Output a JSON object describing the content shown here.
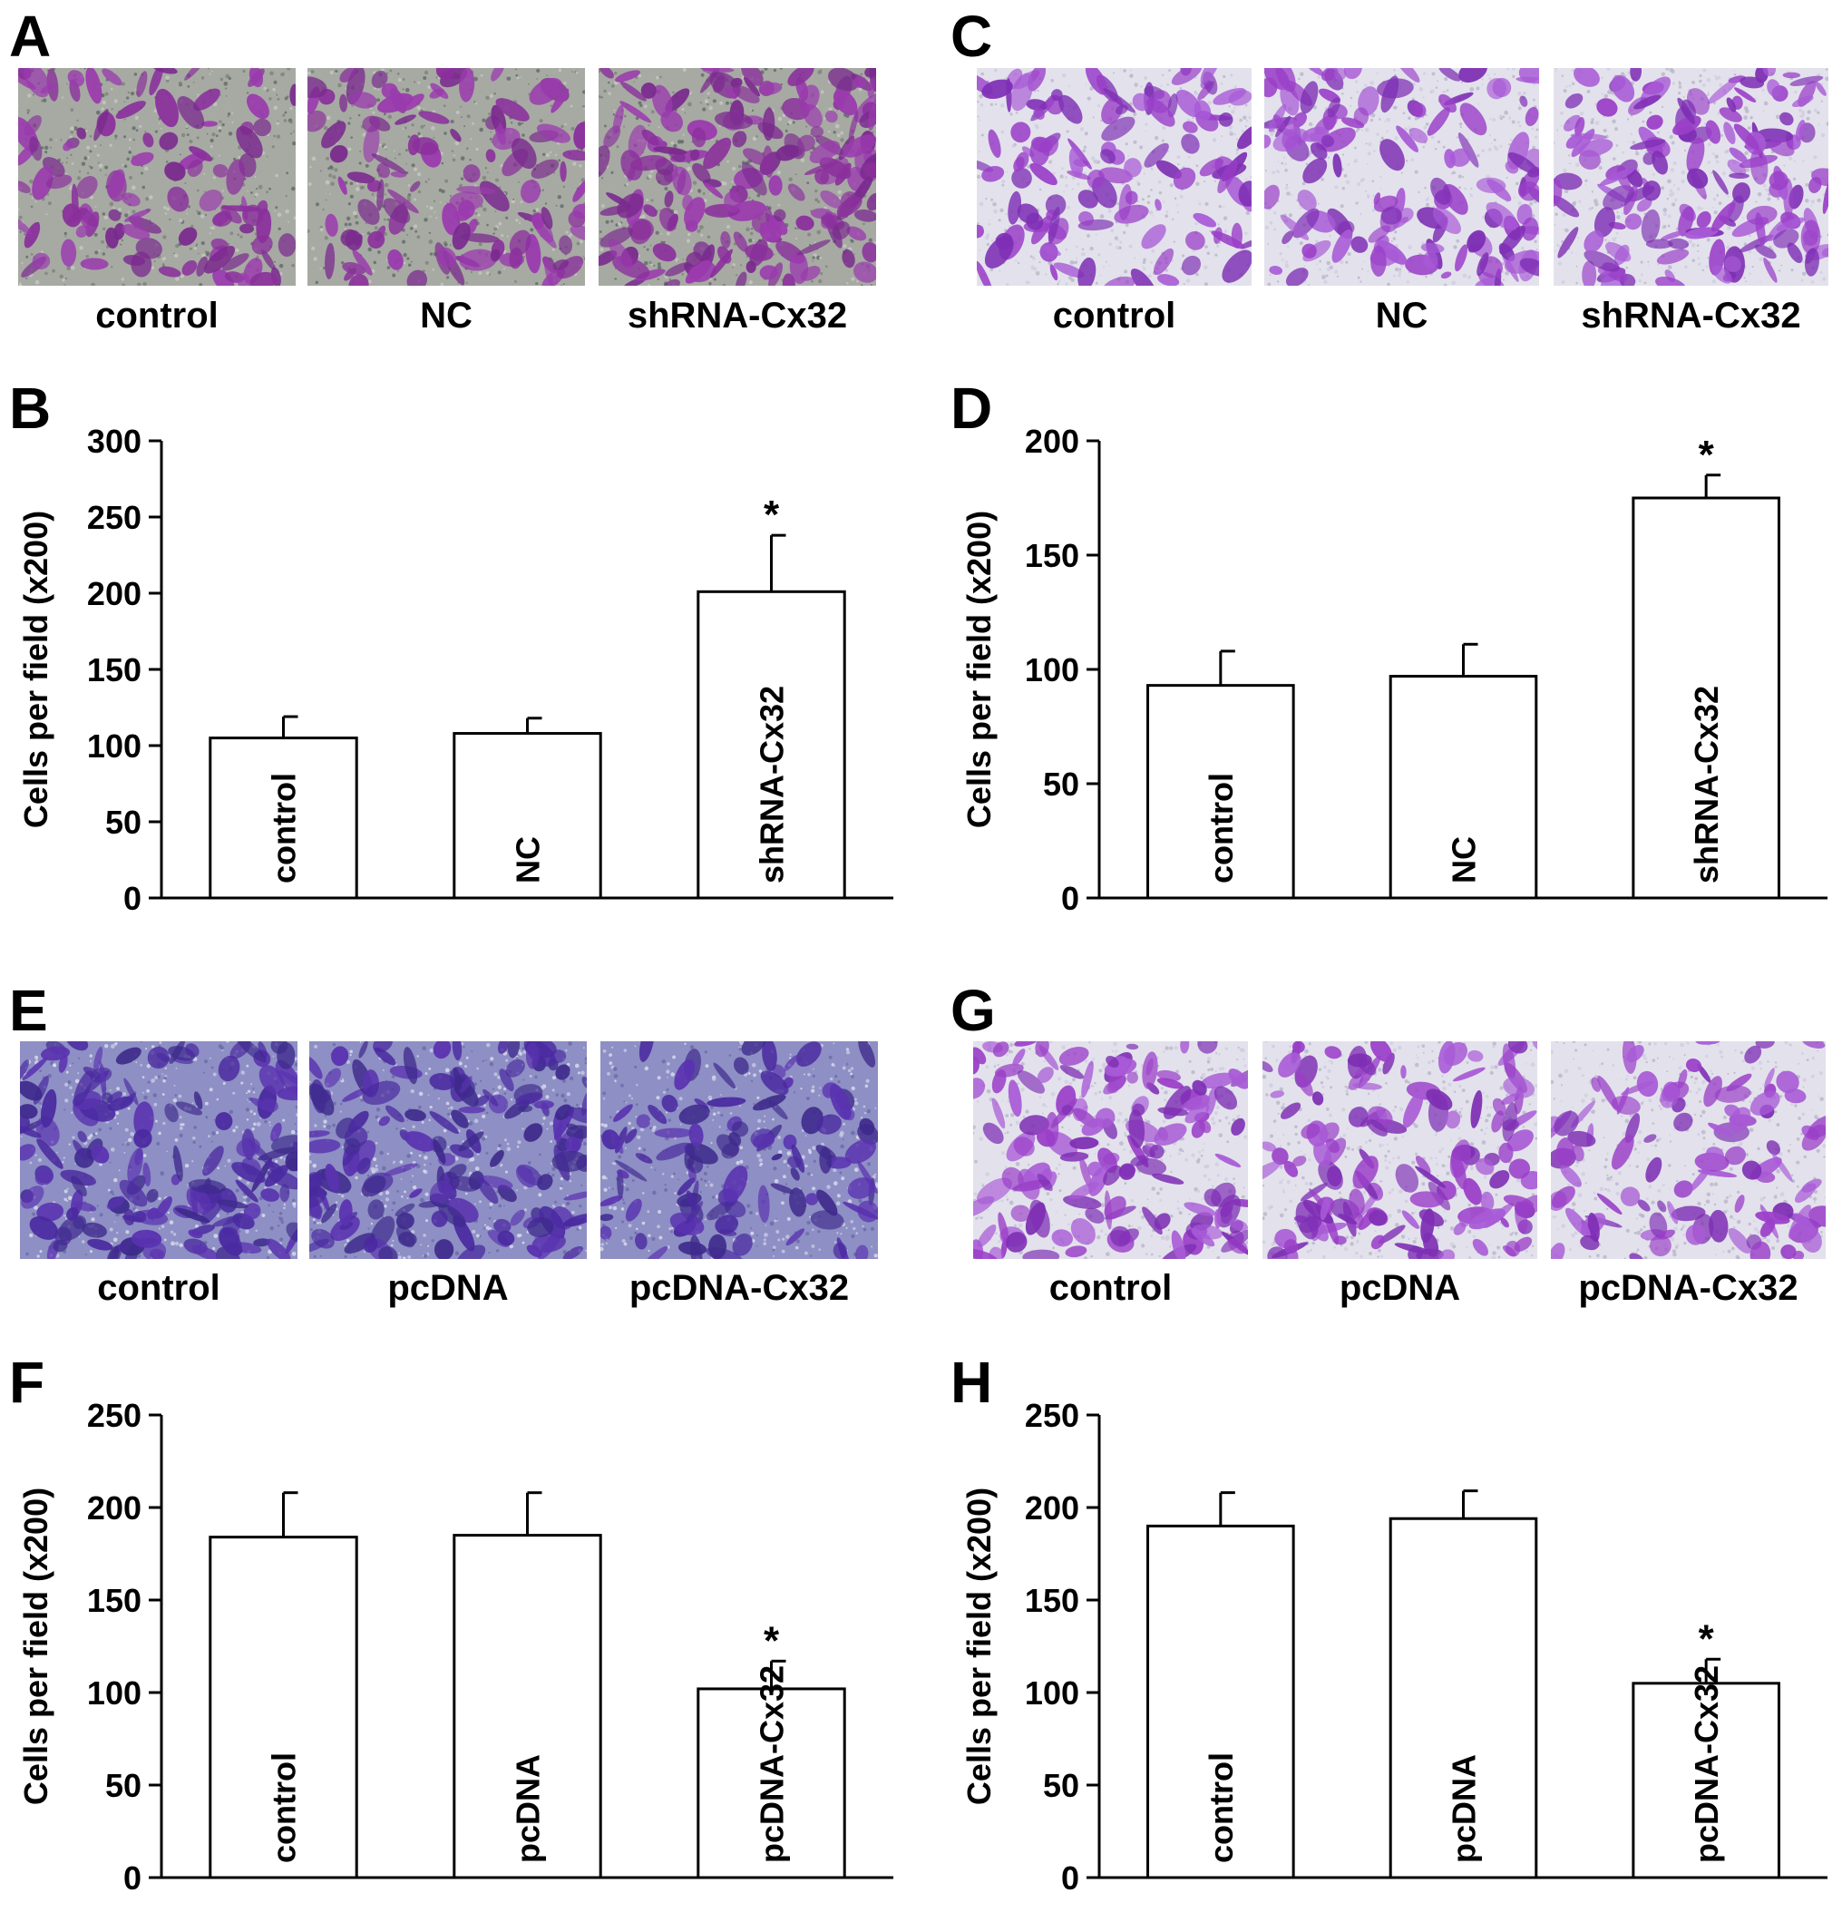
{
  "panels": [
    {
      "letter": "A",
      "labels": [
        "control",
        "NC",
        "shRNA-Cx32"
      ],
      "style": "grey",
      "density": [
        0.45,
        0.5,
        0.95
      ]
    },
    {
      "letter": "C",
      "labels": [
        "control",
        "NC",
        "shRNA-Cx32"
      ],
      "style": "light",
      "density": [
        0.55,
        0.65,
        0.75
      ]
    },
    {
      "letter": "E",
      "labels": [
        "control",
        "pcDNA",
        "pcDNA-Cx32"
      ],
      "style": "blue",
      "density": [
        0.8,
        0.82,
        0.45
      ]
    },
    {
      "letter": "G",
      "labels": [
        "control",
        "pcDNA",
        "pcDNA-Cx32"
      ],
      "style": "light",
      "density": [
        0.75,
        0.7,
        0.45
      ]
    }
  ],
  "chart_data": [
    {
      "letter": "B",
      "type": "bar",
      "categories": [
        "control",
        "NC",
        "shRNA-Cx32"
      ],
      "values": [
        105,
        108,
        201
      ],
      "errors": [
        14,
        10,
        37
      ],
      "significance": [
        "",
        "",
        "*"
      ],
      "ylabel": "Cells per field (x200)",
      "ylim": [
        0,
        300
      ],
      "yticks": [
        0,
        50,
        100,
        150,
        200,
        250,
        300
      ]
    },
    {
      "letter": "D",
      "type": "bar",
      "categories": [
        "control",
        "NC",
        "shRNA-Cx32"
      ],
      "values": [
        93,
        97,
        175
      ],
      "errors": [
        15,
        14,
        10
      ],
      "significance": [
        "",
        "",
        "*"
      ],
      "ylabel": "Cells per field (x200)",
      "ylim": [
        0,
        200
      ],
      "yticks": [
        0,
        50,
        100,
        150,
        200
      ]
    },
    {
      "letter": "F",
      "type": "bar",
      "categories": [
        "control",
        "pcDNA",
        "pcDNA-Cx32"
      ],
      "values": [
        184,
        185,
        102
      ],
      "errors": [
        24,
        23,
        15
      ],
      "significance": [
        "",
        "",
        "*"
      ],
      "ylabel": "Cells per field (x200)",
      "ylim": [
        0,
        250
      ],
      "yticks": [
        0,
        50,
        100,
        150,
        200,
        250
      ]
    },
    {
      "letter": "H",
      "type": "bar",
      "categories": [
        "control",
        "pcDNA",
        "pcDNA-Cx32"
      ],
      "values": [
        190,
        194,
        105
      ],
      "errors": [
        18,
        15,
        13
      ],
      "significance": [
        "",
        "",
        "*"
      ],
      "ylabel": "Cells per field (x200)",
      "ylim": [
        0,
        250
      ],
      "yticks": [
        0,
        50,
        100,
        150,
        200,
        250
      ]
    }
  ]
}
